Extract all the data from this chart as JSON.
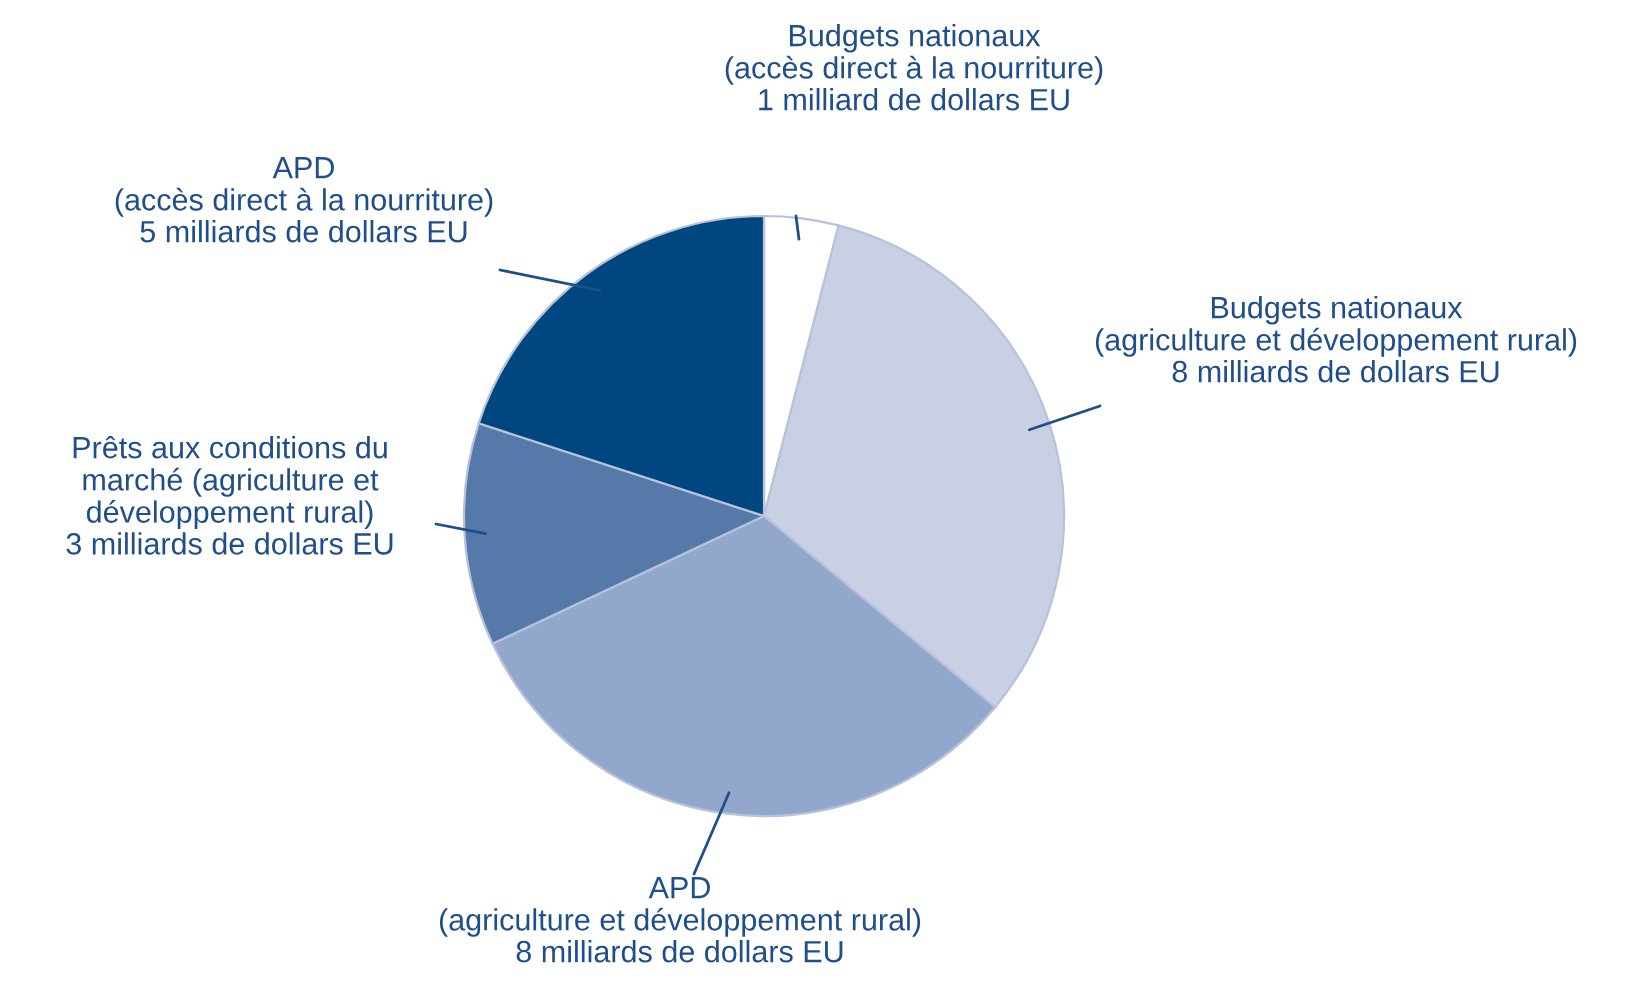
{
  "chart_data": {
    "type": "pie",
    "categories": [
      "Budgets nationaux\n(accès direct à la nourriture)",
      "Budgets nationaux\n(agriculture et développement rural)",
      "APD\n(agriculture et développement rural)",
      "Prêts aux conditions du\nmarché (agriculture et\ndéveloppement rural)",
      "APD\n(accès direct à la nourriture)"
    ],
    "values": [
      1,
      8,
      8,
      3,
      5
    ],
    "value_labels": [
      "1 milliard de dollars EU",
      "8 milliards de dollars EU",
      "8 milliards de dollars EU",
      "3 milliards de dollars EU",
      "5 milliards de dollars EU"
    ],
    "colors": [
      "#ffffff",
      "#c9d0e4",
      "#91a7cb",
      "#5579a9",
      "#004680"
    ],
    "legend": false
  }
}
